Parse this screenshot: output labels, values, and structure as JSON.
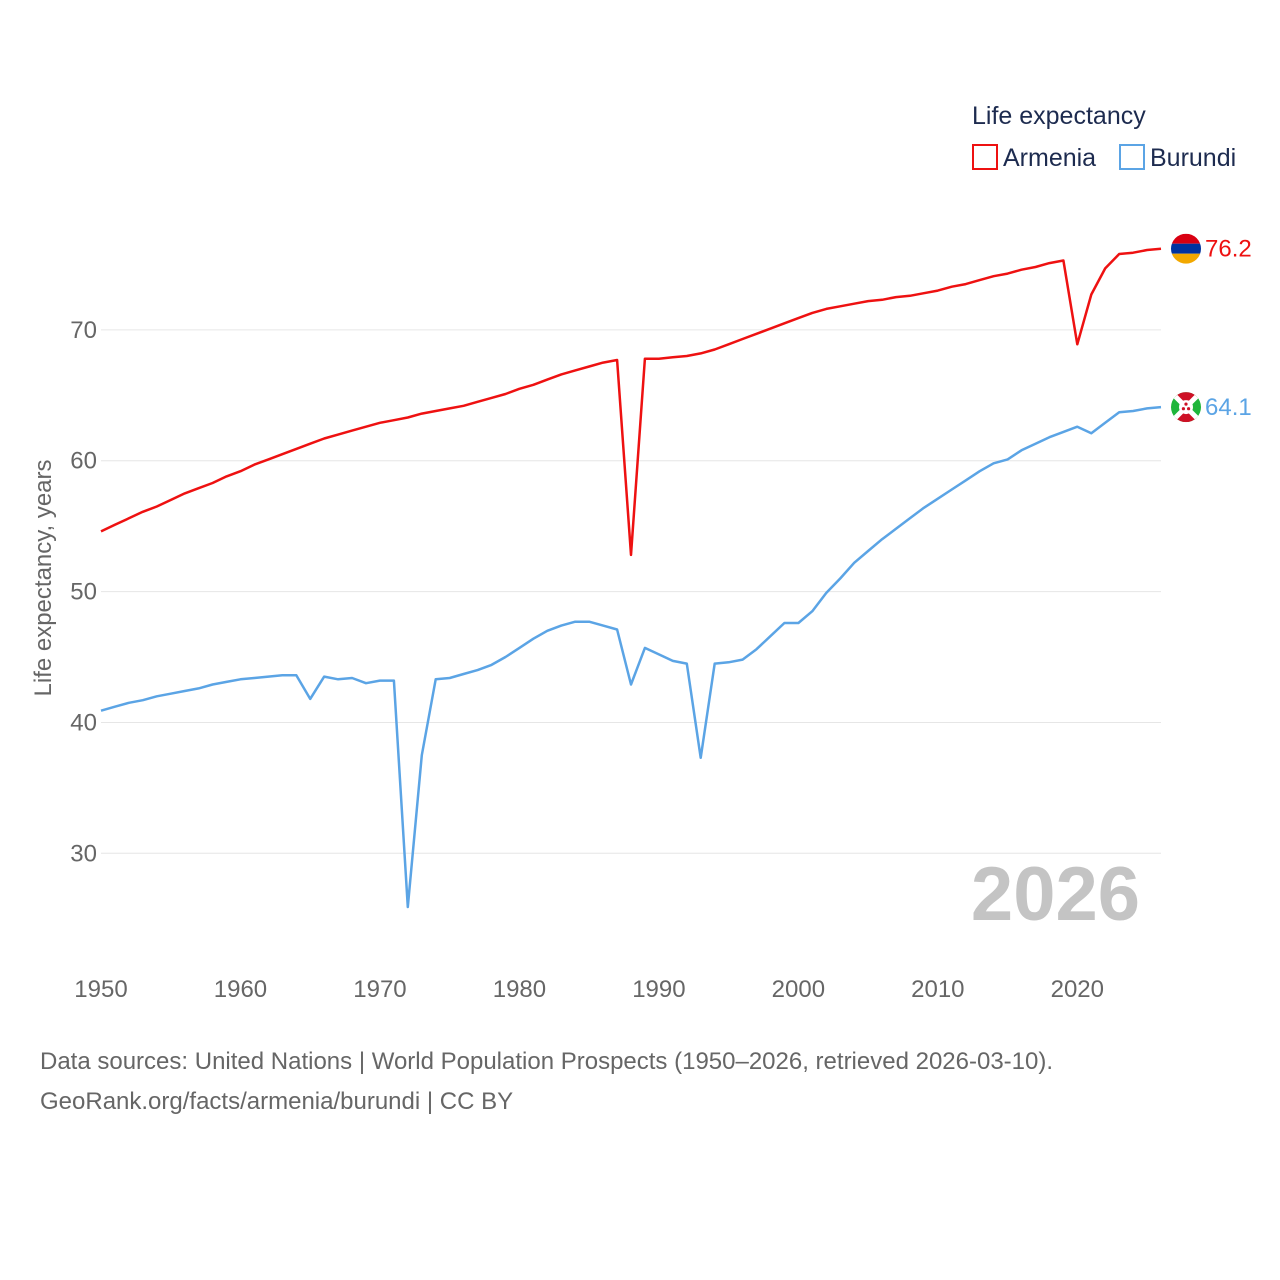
{
  "chart_data": {
    "type": "line",
    "legend_title": "Life expectancy",
    "ylabel": "Life expectancy, years",
    "xlabel": "",
    "xlim": [
      1950,
      2026
    ],
    "ylim": [
      22,
      80
    ],
    "x_ticks": [
      1950,
      1960,
      1970,
      1980,
      1990,
      2000,
      2010,
      2020
    ],
    "y_ticks": [
      30,
      40,
      50,
      60,
      70
    ],
    "watermark_year": "2026",
    "legend_position": "top-right",
    "x": [
      1950,
      1951,
      1952,
      1953,
      1954,
      1955,
      1956,
      1957,
      1958,
      1959,
      1960,
      1961,
      1962,
      1963,
      1964,
      1965,
      1966,
      1967,
      1968,
      1969,
      1970,
      1971,
      1972,
      1973,
      1974,
      1975,
      1976,
      1977,
      1978,
      1979,
      1980,
      1981,
      1982,
      1983,
      1984,
      1985,
      1986,
      1987,
      1988,
      1989,
      1990,
      1991,
      1992,
      1993,
      1994,
      1995,
      1996,
      1997,
      1998,
      1999,
      2000,
      2001,
      2002,
      2003,
      2004,
      2005,
      2006,
      2007,
      2008,
      2009,
      2010,
      2011,
      2012,
      2013,
      2014,
      2015,
      2016,
      2017,
      2018,
      2019,
      2020,
      2021,
      2022,
      2023,
      2024,
      2025,
      2026
    ],
    "series": [
      {
        "name": "Armenia",
        "color": "#ee1111",
        "end_label": "76.2",
        "values": [
          54.6,
          55.1,
          55.6,
          56.1,
          56.5,
          57.0,
          57.5,
          57.9,
          58.3,
          58.8,
          59.2,
          59.7,
          60.1,
          60.5,
          60.9,
          61.3,
          61.7,
          62.0,
          62.3,
          62.6,
          62.9,
          63.1,
          63.3,
          63.6,
          63.8,
          64.0,
          64.2,
          64.5,
          64.8,
          65.1,
          65.5,
          65.8,
          66.2,
          66.6,
          66.9,
          67.2,
          67.5,
          67.7,
          52.8,
          67.8,
          67.8,
          67.9,
          68.0,
          68.2,
          68.5,
          68.9,
          69.3,
          69.7,
          70.1,
          70.5,
          70.9,
          71.3,
          71.6,
          71.8,
          72.0,
          72.2,
          72.3,
          72.5,
          72.6,
          72.8,
          73.0,
          73.3,
          73.5,
          73.8,
          74.1,
          74.3,
          74.6,
          74.8,
          75.1,
          75.3,
          68.9,
          72.7,
          74.7,
          75.8,
          75.9,
          76.1,
          76.2
        ]
      },
      {
        "name": "Burundi",
        "color": "#5ba4e5",
        "end_label": "64.1",
        "values": [
          40.9,
          41.2,
          41.5,
          41.7,
          42.0,
          42.2,
          42.4,
          42.6,
          42.9,
          43.1,
          43.3,
          43.4,
          43.5,
          43.6,
          43.6,
          41.8,
          43.5,
          43.3,
          43.4,
          43.0,
          43.2,
          43.2,
          25.9,
          37.5,
          43.3,
          43.4,
          43.7,
          44.0,
          44.4,
          45.0,
          45.7,
          46.4,
          47.0,
          47.4,
          47.7,
          47.7,
          47.4,
          47.1,
          42.9,
          45.7,
          45.2,
          44.7,
          44.5,
          37.3,
          44.5,
          44.6,
          44.8,
          45.6,
          46.6,
          47.6,
          47.6,
          48.5,
          49.9,
          51.0,
          52.2,
          53.1,
          54.0,
          54.8,
          55.6,
          56.4,
          57.1,
          57.8,
          58.5,
          59.2,
          59.8,
          60.1,
          60.8,
          61.3,
          61.8,
          62.2,
          62.6,
          62.1,
          62.9,
          63.7,
          63.8,
          64.0,
          64.1
        ]
      }
    ]
  },
  "source": {
    "line1": "Data sources: United Nations | World Population Prospects (1950–2026, retrieved 2026-03-10).",
    "line2": "GeoRank.org/facts/armenia/burundi | CC BY"
  }
}
